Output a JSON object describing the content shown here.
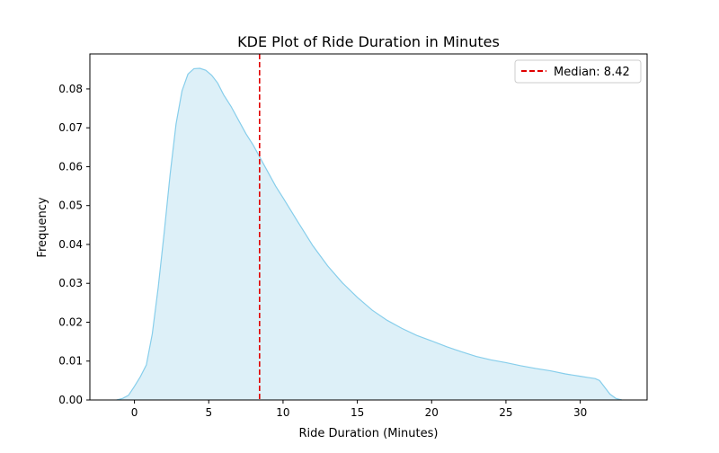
{
  "chart_data": {
    "type": "area",
    "title": "KDE Plot of Ride Duration in Minutes",
    "xlabel": "Ride Duration (Minutes)",
    "ylabel": "Frequency",
    "xlim": [
      -3.0,
      34.5
    ],
    "ylim": [
      0,
      0.089
    ],
    "xticks": [
      0,
      5,
      10,
      15,
      20,
      25,
      30
    ],
    "yticks": [
      "0.00",
      "0.01",
      "0.02",
      "0.03",
      "0.04",
      "0.05",
      "0.06",
      "0.07",
      "0.08"
    ],
    "grid": false,
    "legend_position": "top-right",
    "series": [
      {
        "fill_color": "#ddf0f8",
        "line_color": "#87ceeb",
        "x": [
          -1.2,
          -0.8,
          -0.4,
          0,
          0.4,
          0.8,
          1.2,
          1.6,
          2.0,
          2.4,
          2.8,
          3.2,
          3.6,
          4.0,
          4.4,
          4.8,
          5.2,
          5.6,
          6.0,
          6.5,
          7.0,
          7.5,
          8.0,
          8.5,
          9.0,
          9.5,
          10,
          11,
          12,
          13,
          14,
          15,
          16,
          17,
          18,
          19,
          20,
          21,
          22,
          23,
          24,
          25,
          26,
          27,
          28,
          29,
          30,
          30.5,
          31.0,
          31.3,
          31.6,
          32.0,
          32.4,
          32.8
        ],
        "y": [
          0.0,
          0.0004,
          0.0012,
          0.0035,
          0.006,
          0.009,
          0.017,
          0.029,
          0.043,
          0.058,
          0.071,
          0.0795,
          0.0838,
          0.0852,
          0.0853,
          0.0848,
          0.0835,
          0.0815,
          0.0785,
          0.0755,
          0.072,
          0.0685,
          0.0655,
          0.062,
          0.0585,
          0.055,
          0.052,
          0.0458,
          0.0397,
          0.0345,
          0.0301,
          0.0264,
          0.0231,
          0.0205,
          0.0184,
          0.0166,
          0.0152,
          0.0137,
          0.0124,
          0.0112,
          0.0103,
          0.0096,
          0.0088,
          0.0081,
          0.0075,
          0.0067,
          0.0061,
          0.0058,
          0.0055,
          0.005,
          0.0035,
          0.0015,
          0.0004,
          0.0
        ]
      }
    ],
    "reference_line": {
      "x": 8.42,
      "color": "#e00000",
      "label": "Median: 8.42"
    }
  }
}
